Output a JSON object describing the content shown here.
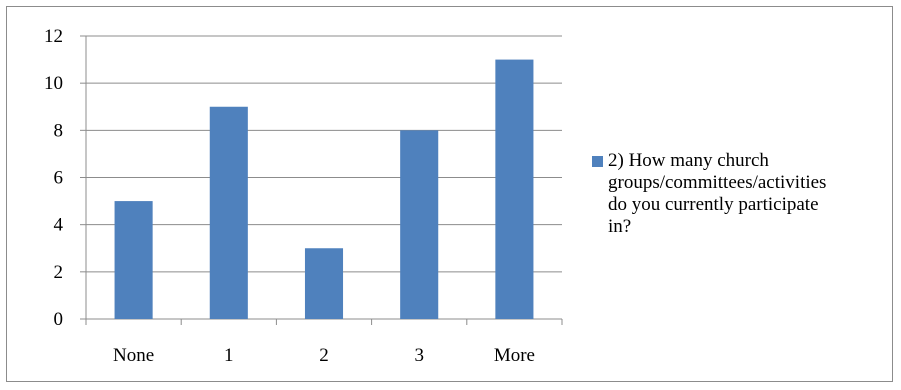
{
  "chart_data": {
    "type": "bar",
    "categories": [
      "None",
      "1",
      "2",
      "3",
      "More"
    ],
    "series": [
      {
        "name": "2) How many church groups/committees/activities do you currently participate in?",
        "values": [
          5,
          9,
          3,
          8,
          11
        ],
        "color": "#4f81bd"
      }
    ],
    "ylim": [
      0,
      12
    ],
    "yticks": [
      0,
      2,
      4,
      6,
      8,
      10,
      12
    ],
    "grid": true,
    "legend_position": "right"
  },
  "legend": {
    "label_lines": [
      "2) How many church",
      "groups/committees/activities",
      "do you currently participate",
      "in?"
    ]
  }
}
